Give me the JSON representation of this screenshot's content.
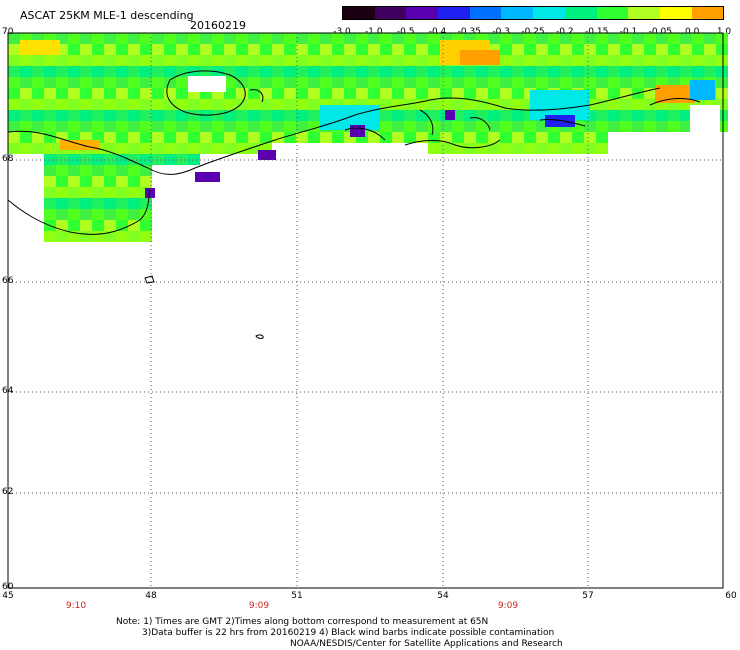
{
  "title": "ASCAT 25KM MLE-1 descending",
  "date": "20160219",
  "colorbar": {
    "labels": [
      "-3.0",
      "-1.0",
      "-0.5",
      "-0.4",
      "-0.35",
      "-0.3",
      "-0.25",
      "-0.2",
      "-0.15",
      "-0.1",
      "-0.05",
      "0.0",
      "1.0"
    ],
    "colors": [
      "#1a0010",
      "#400060",
      "#5a00b0",
      "#2020f0",
      "#0070ff",
      "#00b8ff",
      "#00e8e8",
      "#00f080",
      "#30ff30",
      "#b0ff20",
      "#ffff00",
      "#ffa000",
      "#ff2000"
    ]
  },
  "lat_labels": [
    "70",
    "68",
    "66",
    "64",
    "62",
    "60"
  ],
  "lon_labels": [
    "45",
    "48",
    "51",
    "54",
    "57",
    "60"
  ],
  "times": [
    "9:10",
    "9:09",
    "9:09"
  ],
  "notes": [
    "Note: 1) Times are GMT 2)Times along bottom correspond to measurement at 65N",
    "3)Data buffer is 22 hrs from 20160219 4) Black wind barbs indicate possible contamination",
    "NOAA/NESDIS/Center for Satellite Applications and Research"
  ]
}
